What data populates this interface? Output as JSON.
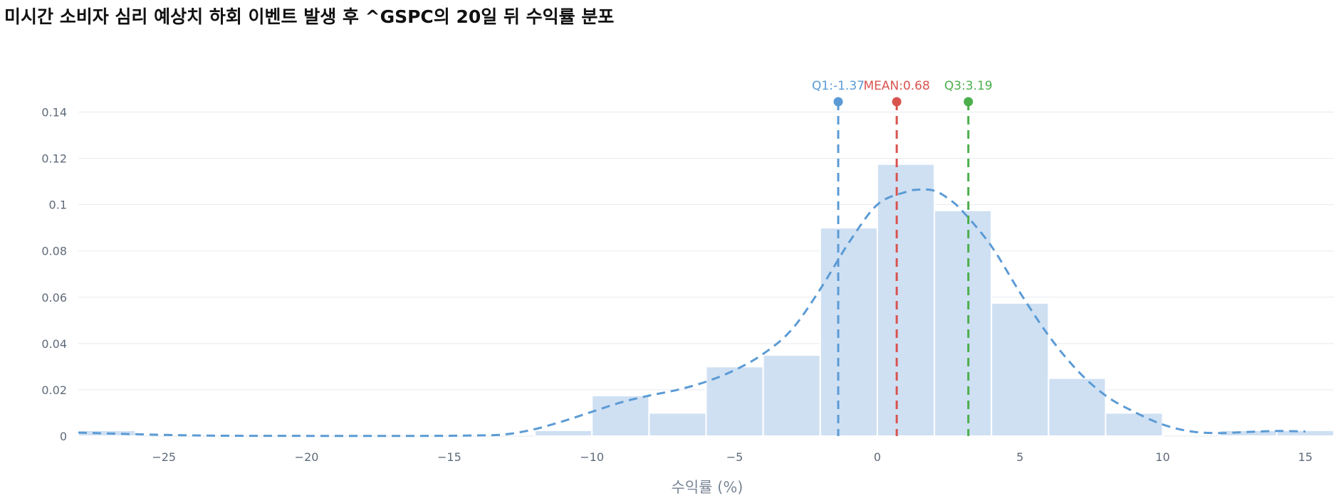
{
  "chart_data": {
    "type": "bar",
    "title": "미시간 소비자 심리 예상치 하회 이벤트 발생 후 ^GSPC의 20일 뒤 수익률 분포",
    "xlabel": "수익률 (%)",
    "ylabel": "",
    "xlim": [
      -28,
      16
    ],
    "ylim": [
      0,
      0.15
    ],
    "x_ticks": [
      -25,
      -20,
      -15,
      -10,
      -5,
      0,
      5,
      10,
      15
    ],
    "x_tick_labels": [
      "−25",
      "−20",
      "−15",
      "−10",
      "−5",
      "0",
      "5",
      "10",
      "15"
    ],
    "y_ticks": [
      0,
      0.02,
      0.04,
      0.06,
      0.08,
      0.1,
      0.12,
      0.14
    ],
    "y_tick_labels": [
      "0",
      "0.02",
      "0.04",
      "0.06",
      "0.08",
      "0.1",
      "0.12",
      "0.14"
    ],
    "grid": true,
    "bins": [
      {
        "x0": -28,
        "x1": -26,
        "density": 0.0025
      },
      {
        "x0": -26,
        "x1": -24,
        "density": 0
      },
      {
        "x0": -24,
        "x1": -22,
        "density": 0
      },
      {
        "x0": -22,
        "x1": -20,
        "density": 0
      },
      {
        "x0": -20,
        "x1": -18,
        "density": 0
      },
      {
        "x0": -18,
        "x1": -16,
        "density": 0
      },
      {
        "x0": -16,
        "x1": -14,
        "density": 0
      },
      {
        "x0": -14,
        "x1": -12,
        "density": 0
      },
      {
        "x0": -12,
        "x1": -10,
        "density": 0.0025
      },
      {
        "x0": -10,
        "x1": -8,
        "density": 0.0175
      },
      {
        "x0": -8,
        "x1": -6,
        "density": 0.01
      },
      {
        "x0": -6,
        "x1": -4,
        "density": 0.03
      },
      {
        "x0": -4,
        "x1": -2,
        "density": 0.035
      },
      {
        "x0": -2,
        "x1": 0,
        "density": 0.09
      },
      {
        "x0": 0,
        "x1": 2,
        "density": 0.1175
      },
      {
        "x0": 2,
        "x1": 4,
        "density": 0.0975
      },
      {
        "x0": 4,
        "x1": 6,
        "density": 0.0575
      },
      {
        "x0": 6,
        "x1": 8,
        "density": 0.025
      },
      {
        "x0": 8,
        "x1": 10,
        "density": 0.01
      },
      {
        "x0": 10,
        "x1": 12,
        "density": 0
      },
      {
        "x0": 12,
        "x1": 14,
        "density": 0.0025
      },
      {
        "x0": 14,
        "x1": 16,
        "density": 0.0025
      }
    ],
    "kde": {
      "x": [
        -28,
        -24,
        -20,
        -16,
        -14,
        -13,
        -12,
        -11,
        -10,
        -9,
        -8,
        -7,
        -6,
        -5,
        -4,
        -3,
        -2,
        -1,
        0,
        1,
        1.5,
        2,
        2.5,
        3,
        4,
        5,
        6,
        7,
        8,
        9,
        10,
        11,
        12,
        13,
        14,
        15
      ],
      "y": [
        0.0015,
        0.0003,
        0.0001,
        0.0001,
        0.0003,
        0.0008,
        0.003,
        0.0065,
        0.0105,
        0.0145,
        0.0175,
        0.02,
        0.0235,
        0.0285,
        0.0355,
        0.046,
        0.0635,
        0.0835,
        0.1,
        0.1055,
        0.1065,
        0.106,
        0.1025,
        0.097,
        0.082,
        0.062,
        0.0435,
        0.0285,
        0.0175,
        0.0105,
        0.005,
        0.002,
        0.0013,
        0.0018,
        0.0022,
        0.002
      ],
      "color": "#5b9bd5"
    },
    "markers": [
      {
        "label": "Q1:-1.37",
        "x": -1.37,
        "color": "#5b9bd5"
      },
      {
        "label": "MEAN:0.68",
        "x": 0.68,
        "color": "#d9534f"
      },
      {
        "label": "Q3:3.19",
        "x": 3.19,
        "color": "#4cae4c"
      }
    ],
    "bar_color": "#cfe0f3"
  }
}
